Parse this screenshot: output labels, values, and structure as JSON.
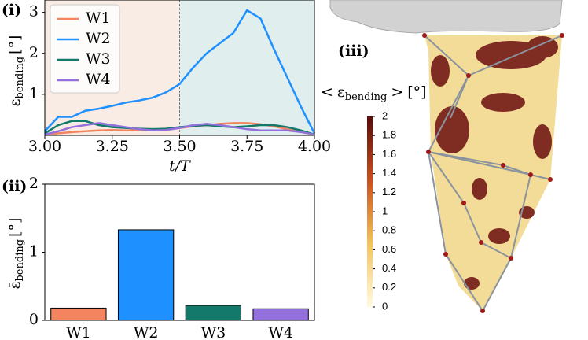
{
  "chart_data": [
    {
      "type": "line",
      "panel_label": "(i)",
      "x_label": "t/T",
      "y_label": {
        "symbol": "ε",
        "subscript": "bending",
        "unit": "[°]"
      },
      "x": [
        3.0,
        3.05,
        3.1,
        3.15,
        3.2,
        3.25,
        3.3,
        3.35,
        3.4,
        3.45,
        3.5,
        3.55,
        3.6,
        3.65,
        3.7,
        3.75,
        3.8,
        3.85,
        3.9,
        3.95,
        4.0
      ],
      "series": [
        {
          "name": "W1",
          "color": "#f4845f",
          "values": [
            0.02,
            0.05,
            0.08,
            0.1,
            0.12,
            0.13,
            0.12,
            0.12,
            0.13,
            0.15,
            0.18,
            0.22,
            0.25,
            0.28,
            0.3,
            0.3,
            0.27,
            0.22,
            0.15,
            0.08,
            0.02
          ]
        },
        {
          "name": "W2",
          "color": "#1e90ff",
          "values": [
            0.1,
            0.45,
            0.45,
            0.6,
            0.65,
            0.72,
            0.8,
            0.85,
            0.92,
            1.05,
            1.25,
            1.65,
            2.0,
            2.25,
            2.5,
            3.05,
            2.85,
            2.1,
            1.4,
            0.7,
            0.05
          ]
        },
        {
          "name": "W3",
          "color": "#137a6b",
          "values": [
            0.05,
            0.25,
            0.35,
            0.35,
            0.25,
            0.2,
            0.18,
            0.16,
            0.15,
            0.16,
            0.2,
            0.23,
            0.25,
            0.22,
            0.2,
            0.22,
            0.25,
            0.25,
            0.2,
            0.12,
            0.02
          ]
        },
        {
          "name": "W4",
          "color": "#9370db",
          "values": [
            0.02,
            0.1,
            0.2,
            0.25,
            0.3,
            0.25,
            0.2,
            0.15,
            0.12,
            0.13,
            0.18,
            0.25,
            0.28,
            0.25,
            0.2,
            0.15,
            0.12,
            0.12,
            0.12,
            0.08,
            0.02
          ]
        }
      ],
      "xlim": [
        3,
        4
      ],
      "xticks": [
        {
          "value": 3,
          "label": "3.00"
        },
        {
          "value": 3.25,
          "label": "3.25"
        },
        {
          "value": 3.5,
          "label": "3.50"
        },
        {
          "value": 3.75,
          "label": "3.75"
        },
        {
          "value": 4,
          "label": "4.00"
        }
      ],
      "ylim": [
        0,
        3.3
      ],
      "yticks": [
        1,
        2,
        3
      ],
      "spans": [
        {
          "xrange": [
            3,
            3.5
          ],
          "color": "#f8ece4"
        },
        {
          "xrange": [
            3.5,
            4
          ],
          "color": "#e0efed"
        }
      ],
      "vline": 3.5,
      "legend": "upper left"
    },
    {
      "type": "bar",
      "panel_label": "(ii)",
      "y_label": {
        "symbol": "ε̄",
        "subscript": "bending",
        "unit": "[°]"
      },
      "categories": [
        "W1",
        "W2",
        "W3",
        "W4"
      ],
      "values": [
        0.18,
        1.33,
        0.22,
        0.17
      ],
      "colors": [
        "#f4845f",
        "#1e90ff",
        "#137a6b",
        "#9370db"
      ],
      "ylim": [
        0,
        2
      ],
      "yticks": [
        0,
        1,
        2
      ]
    },
    {
      "type": "colorbar",
      "panel_label": "(iii)",
      "label": {
        "open": "<",
        "symbol": "ε",
        "subscript": "bending",
        "close": ">",
        "unit": "[°]"
      },
      "ylim": [
        0,
        2
      ],
      "yticks": [
        0,
        0.2,
        0.4,
        0.6,
        0.8,
        1,
        1.2,
        1.4,
        1.6,
        1.8,
        2
      ],
      "colors": [
        "#fffbe0",
        "#f5c35a",
        "#c8501a",
        "#5a0a0a"
      ]
    }
  ]
}
